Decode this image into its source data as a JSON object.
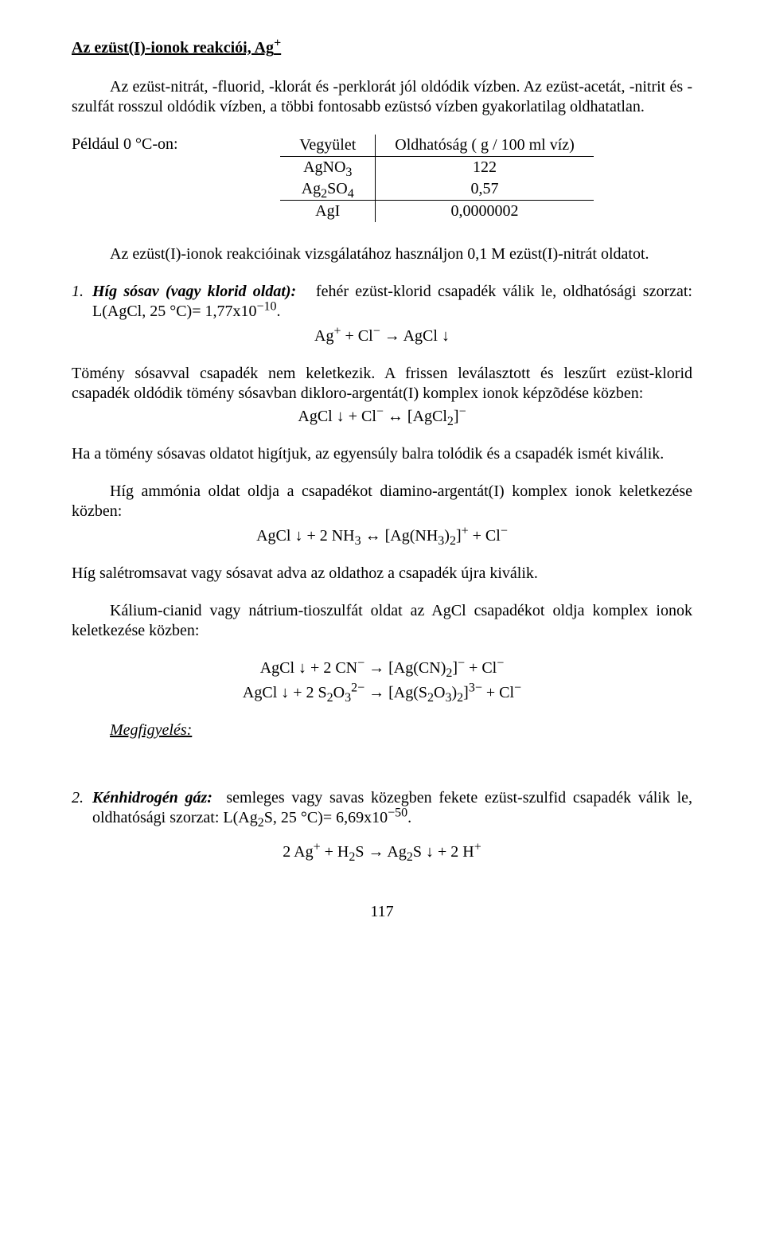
{
  "title_html": "Az ezüst(I)-ionok reakciói,  Ag<sup>+</sup>",
  "intro": "Az ezüst-nitrát, -fluorid, -klorát és -perklorát jól oldódik vízben. Az ezüst-acetát, -nitrit és -szulfát rosszul oldódik vízben, a többi fontosabb ezüstsó vízben gyakorlatilag oldhatatlan.",
  "table_label": "Például 0 °C-on:",
  "table": {
    "head_left": "Vegyület",
    "head_right": "Oldhatóság ( g / 100 ml víz)",
    "rows": [
      {
        "c_html": "AgNO<sub>3</sub>",
        "v": "122"
      },
      {
        "c_html": "Ag<sub>2</sub>SO<sub>4</sub>",
        "v": "0,57"
      },
      {
        "c_html": "AgI",
        "v": "0,0000002"
      }
    ]
  },
  "after_table": "Az ezüst(I)-ionok reakcióinak vizsgálatához használjon 0,1 M ezüst(I)-nitrát oldatot.",
  "item1_lead_html": "<span class=\"italic-bold\">Híg sósav (vagy klorid oldat):</span>&nbsp;&nbsp; fehér ezüst-klorid csapadék válik le, oldhatósági szorzat: L(AgCl, 25 °C)= 1,77x10<sup>−10</sup>.",
  "eq1_html": "Ag<sup>+</sup>  +  Cl<sup>−</sup>  →  AgCl ↓",
  "p2_html": "Tömény sósavval csapadék nem keletkezik. A frissen leválasztott és leszűrt ezüst-klorid csapadék oldódik tömény sósavban dikloro-argentát(I) komplex ionok képzõdése közben:",
  "eq2_html": "AgCl ↓  +  Cl<sup>−</sup>  ↔  [AgCl<sub>2</sub>]<sup>−</sup>",
  "p3": "Ha a tömény sósavas oldatot higítjuk, az egyensúly balra tolódik és a csapadék ismét kiválik.",
  "p4": "Híg ammónia oldat oldja a csapadékot diamino-argentát(I) komplex ionok keletkezése közben:",
  "eq3_html": "AgCl ↓  +  2 NH<sub>3</sub>  ↔  [Ag(NH<sub>3</sub>)<sub>2</sub>]<sup>+</sup>  +  Cl<sup>−</sup>",
  "p5": "Híg salétromsavat vagy sósavat adva az oldathoz a csapadék újra kiválik.",
  "p6": "Kálium-cianid vagy nátrium-tioszulfát oldat az AgCl csapadékot oldja komplex ionok keletkezése közben:",
  "eq4a_html": "AgCl ↓  +  2 CN<sup>−</sup>  →  [Ag(CN)<sub>2</sub>]<sup>−</sup>  +  Cl<sup>−</sup>",
  "eq4b_html": "AgCl ↓  +  2 S<sub>2</sub>O<sub>3</sub><sup>2−</sup>  →  [Ag(S<sub>2</sub>O<sub>3</sub>)<sub>2</sub>]<sup>3−</sup>  +  Cl<sup>−</sup>",
  "obs": "Megfigyelés:",
  "item2_html": "<span class=\"italic-bold\">Kénhidrogén gáz:</span>&nbsp; semleges vagy savas közegben fekete ezüst-szulfid csapadék válik le, oldhatósági szorzat: L(Ag<sub>2</sub>S, 25 °C)= 6,69x10<sup>−50</sup>.",
  "eq5_html": "2 Ag<sup>+</sup>  +  H<sub>2</sub>S  →  Ag<sub>2</sub>S ↓  +  2 H<sup>+</sup>",
  "page_number": "117",
  "numbers": {
    "one": "1.",
    "two": "2."
  }
}
